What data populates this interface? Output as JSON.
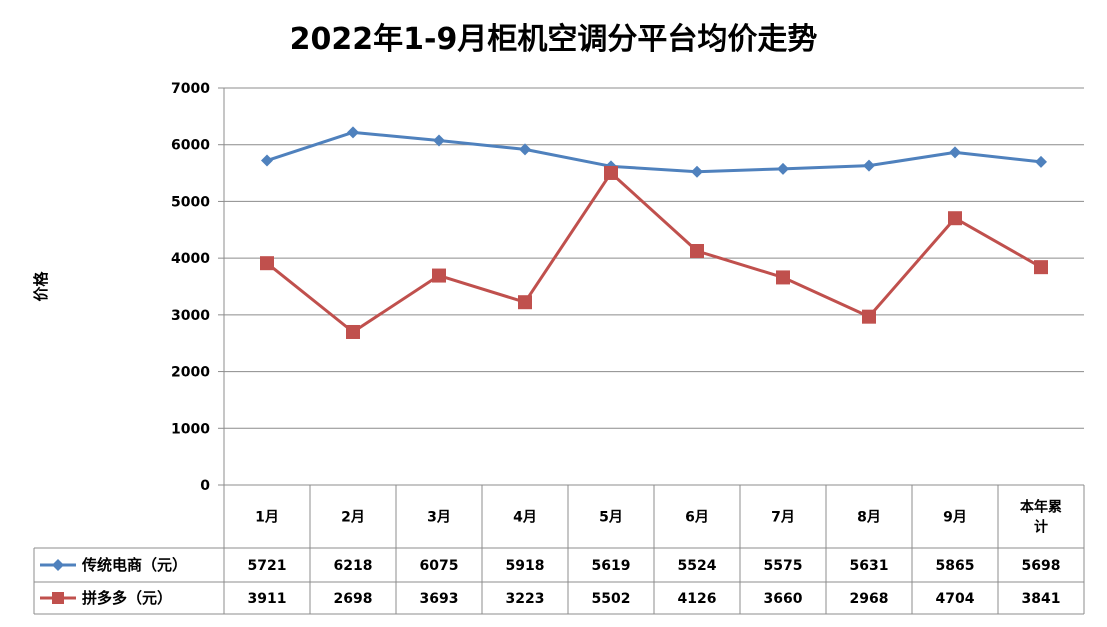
{
  "chart_data": {
    "type": "line",
    "title": "2022年1-9月柜机空调分平台均价走势",
    "ylabel": "价格",
    "xlabel": "",
    "ylim": [
      0,
      7000
    ],
    "yticks": [
      0,
      1000,
      2000,
      3000,
      4000,
      5000,
      6000,
      7000
    ],
    "grid": true,
    "legend": "data-table-left",
    "categories": [
      "1月",
      "2月",
      "3月",
      "4月",
      "5月",
      "6月",
      "7月",
      "8月",
      "9月",
      "本年累计"
    ],
    "category_lines": {
      "9": [
        "本年累",
        "计"
      ]
    },
    "series": [
      {
        "name": "传统电商（元）",
        "color": "#4f81bd",
        "marker": "diamond",
        "values": [
          5721,
          6218,
          6075,
          5918,
          5619,
          5524,
          5575,
          5631,
          5865,
          5698
        ]
      },
      {
        "name": "拼多多（元）",
        "color": "#c0504d",
        "marker": "square",
        "values": [
          3911,
          2698,
          3693,
          3223,
          5502,
          4126,
          3660,
          2968,
          4704,
          3841
        ]
      }
    ]
  }
}
